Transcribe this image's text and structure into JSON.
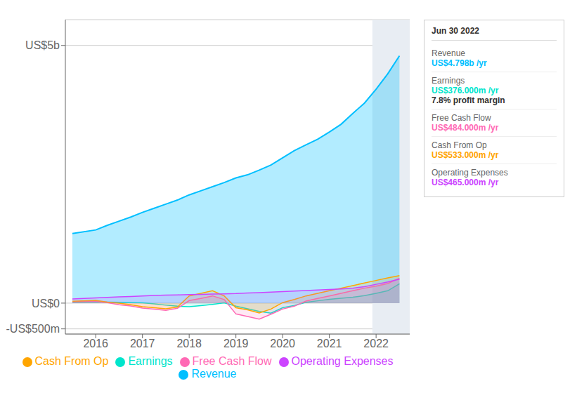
{
  "chart_data": {
    "type": "area",
    "x": [
      2015.5,
      2016.0,
      2016.25,
      2016.5,
      2016.75,
      2017.0,
      2017.25,
      2017.5,
      2017.75,
      2018.0,
      2018.25,
      2018.5,
      2018.75,
      2019.0,
      2019.25,
      2019.5,
      2019.75,
      2020.0,
      2020.25,
      2020.5,
      2020.75,
      2021.0,
      2021.25,
      2021.5,
      2021.75,
      2022.0,
      2022.25,
      2022.5
    ],
    "series": [
      {
        "name": "Revenue",
        "color": "#00bfff",
        "values": [
          1350,
          1420,
          1510,
          1590,
          1670,
          1760,
          1840,
          1920,
          2000,
          2100,
          2180,
          2260,
          2340,
          2430,
          2490,
          2580,
          2680,
          2820,
          2960,
          3070,
          3180,
          3320,
          3470,
          3680,
          3880,
          4150,
          4450,
          4798
        ]
      },
      {
        "name": "Earnings",
        "color": "#00e5cc",
        "values": [
          15,
          25,
          20,
          15,
          10,
          5,
          -15,
          -40,
          -60,
          -70,
          -50,
          -25,
          5,
          -60,
          -110,
          -160,
          -195,
          -90,
          -45,
          15,
          45,
          75,
          95,
          115,
          145,
          190,
          240,
          376
        ]
      },
      {
        "name": "Free Cash Flow",
        "color": "#ff69b4",
        "values": [
          25,
          35,
          10,
          -30,
          -55,
          -95,
          -115,
          -140,
          -100,
          50,
          90,
          140,
          70,
          -210,
          -260,
          -310,
          -215,
          -115,
          -60,
          40,
          90,
          140,
          190,
          240,
          290,
          330,
          380,
          484
        ]
      },
      {
        "name": "Cash From Op",
        "color": "#ffa500",
        "values": [
          35,
          55,
          20,
          0,
          -30,
          -70,
          -90,
          -110,
          -75,
          140,
          190,
          240,
          140,
          -90,
          -130,
          -190,
          -115,
          10,
          70,
          140,
          190,
          240,
          290,
          340,
          390,
          440,
          490,
          533
        ]
      },
      {
        "name": "Operating Expenses",
        "color": "#cc44ff",
        "values": [
          80,
          100,
          110,
          120,
          130,
          140,
          150,
          155,
          160,
          165,
          170,
          175,
          180,
          185,
          195,
          205,
          215,
          225,
          235,
          245,
          255,
          265,
          275,
          290,
          320,
          365,
          410,
          465
        ]
      }
    ],
    "xlim": [
      2015.35,
      2022.72
    ],
    "xticks": [
      2016,
      2017,
      2018,
      2019,
      2020,
      2021,
      2022
    ],
    "ylim": [
      -600,
      5500
    ],
    "yticks": [
      {
        "value": 5000,
        "label": "US$5b"
      },
      {
        "value": 0,
        "label": "US$0"
      },
      {
        "value": -500,
        "label": "-US$500m"
      }
    ],
    "grid": true,
    "highlight": {
      "from": 2021.92
    },
    "annotations": [
      {
        "title": "Jun 30 2022",
        "rows": [
          {
            "label": "Revenue",
            "text": "US$4.798b /yr",
            "color": "#00bfff"
          },
          {
            "label": "Earnings",
            "text": "US$376.000m /yr",
            "note": "7.8% profit margin",
            "color": "#00e5cc"
          },
          {
            "label": "Free Cash Flow",
            "text": "US$484.000m /yr",
            "color": "#ff69b4"
          },
          {
            "label": "Cash From Op",
            "text": "US$533.000m /yr",
            "color": "#ffa500"
          },
          {
            "label": "Operating Expenses",
            "text": "US$465.000m /yr",
            "color": "#cc44ff"
          }
        ]
      }
    ]
  }
}
